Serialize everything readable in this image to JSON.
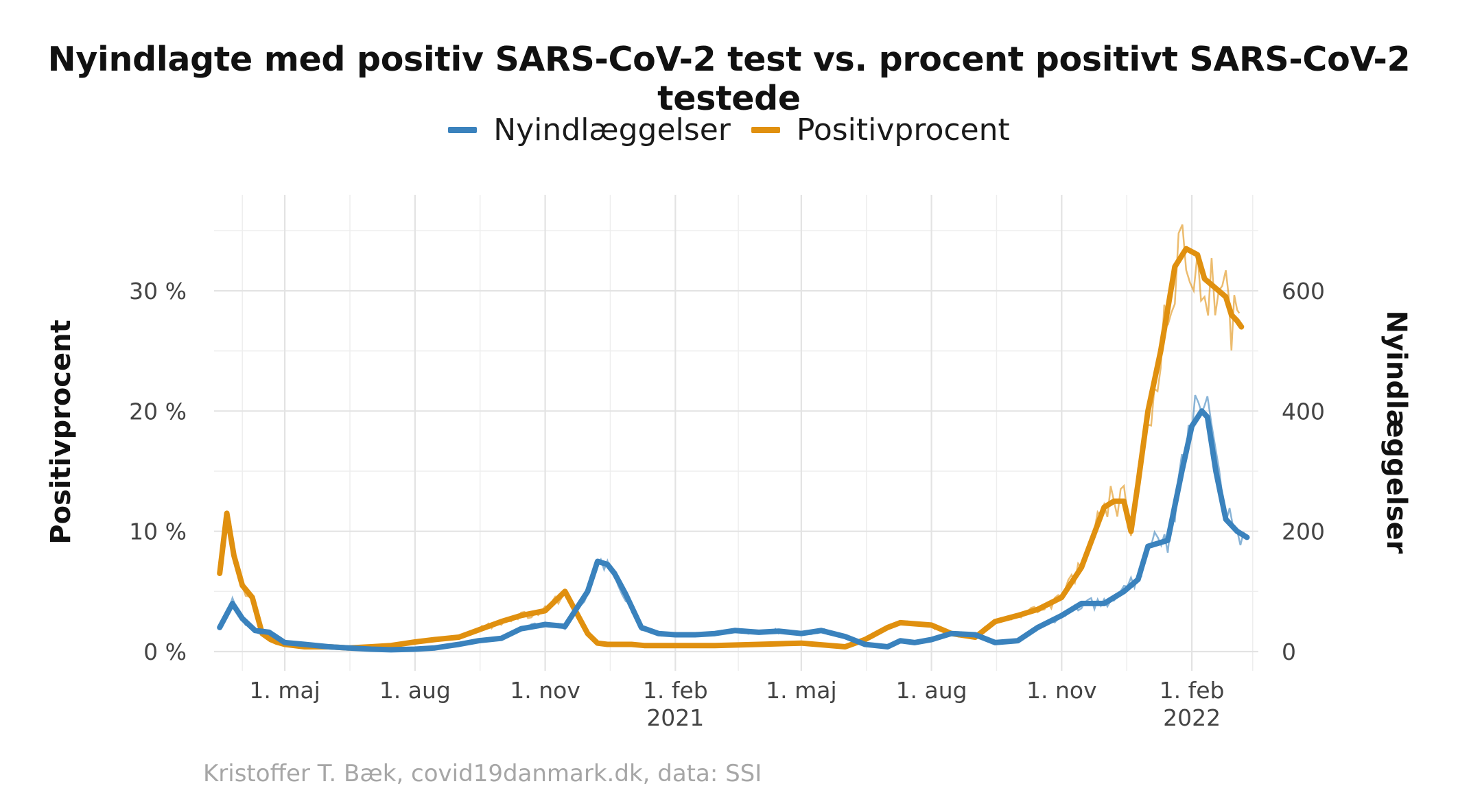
{
  "title": "Nyindlagte med positiv SARS-CoV-2 test vs. procent positivt SARS-CoV-2 testede",
  "caption": "Kristoffer T. Bæk, covid19danmark.dk, data: SSI",
  "colors": {
    "Nyindlæggelser": "#3a82bd",
    "Positivprocent": "#e0900f",
    "grid": "#e6e6e6"
  },
  "legend": [
    {
      "name": "Nyindlæggelser",
      "color": "#3a82bd"
    },
    {
      "name": "Positivprocent",
      "color": "#e0900f"
    }
  ],
  "chart_data": {
    "type": "line",
    "title": "Nyindlagte med positiv SARS-CoV-2 test vs. procent positivt SARS-CoV-2 testede",
    "xlabel": "",
    "ylabel": "Positivprocent",
    "y2label": "Nyindlæggelser",
    "xlim": [
      "2020-03-12",
      "2022-03-20"
    ],
    "ylim": [
      0,
      40
    ],
    "y2lim": [
      0,
      800
    ],
    "grid": true,
    "legend_position": "top",
    "x_ticks": [
      {
        "date": "2020-05-01",
        "label": "1. maj"
      },
      {
        "date": "2020-08-01",
        "label": "1. aug"
      },
      {
        "date": "2020-11-01",
        "label": "1. nov"
      },
      {
        "date": "2021-02-01",
        "label": "1. feb\n2021"
      },
      {
        "date": "2021-05-01",
        "label": "1. maj"
      },
      {
        "date": "2021-08-01",
        "label": "1. aug"
      },
      {
        "date": "2021-11-01",
        "label": "1. nov"
      },
      {
        "date": "2022-02-01",
        "label": "1. feb\n2022"
      }
    ],
    "y_ticks": [
      {
        "value": 0,
        "label": "0 %"
      },
      {
        "value": 10,
        "label": "10 %"
      },
      {
        "value": 20,
        "label": "20 %"
      },
      {
        "value": 30,
        "label": "30 %"
      }
    ],
    "y2_ticks": [
      {
        "value": 0,
        "label": "0"
      },
      {
        "value": 200,
        "label": "200"
      },
      {
        "value": 400,
        "label": "400"
      },
      {
        "value": 600,
        "label": "600"
      }
    ],
    "series": [
      {
        "name": "Positivprocent",
        "axis": "left",
        "unit": "%",
        "x": [
          "2020-03-16",
          "2020-03-21",
          "2020-03-26",
          "2020-04-01",
          "2020-04-08",
          "2020-04-15",
          "2020-04-21",
          "2020-04-25",
          "2020-05-01",
          "2020-05-15",
          "2020-06-01",
          "2020-06-15",
          "2020-07-01",
          "2020-07-15",
          "2020-08-01",
          "2020-08-15",
          "2020-09-01",
          "2020-09-15",
          "2020-10-01",
          "2020-10-15",
          "2020-11-01",
          "2020-11-15",
          "2020-12-01",
          "2020-12-08",
          "2020-12-15",
          "2020-12-20",
          "2021-01-01",
          "2021-01-10",
          "2021-02-01",
          "2021-03-01",
          "2021-04-01",
          "2021-05-01",
          "2021-06-01",
          "2021-06-15",
          "2021-07-01",
          "2021-07-10",
          "2021-08-01",
          "2021-08-15",
          "2021-09-01",
          "2021-09-15",
          "2021-10-01",
          "2021-10-15",
          "2021-11-01",
          "2021-11-15",
          "2021-12-01",
          "2021-12-08",
          "2021-12-15",
          "2021-12-20",
          "2021-12-25",
          "2022-01-01",
          "2022-01-10",
          "2022-01-20",
          "2022-01-28",
          "2022-02-05",
          "2022-02-10",
          "2022-02-15",
          "2022-02-20",
          "2022-02-25",
          "2022-03-01",
          "2022-03-05",
          "2022-03-08"
        ],
        "values": [
          6.5,
          11.5,
          8.0,
          5.5,
          4.5,
          1.5,
          1.0,
          0.8,
          0.6,
          0.4,
          0.4,
          0.3,
          0.4,
          0.5,
          0.8,
          1.0,
          1.2,
          1.8,
          2.5,
          3.0,
          3.4,
          5.0,
          1.5,
          0.7,
          0.6,
          0.6,
          0.6,
          0.5,
          0.5,
          0.5,
          0.6,
          0.7,
          0.4,
          1.0,
          2.0,
          2.4,
          2.2,
          1.5,
          1.2,
          2.5,
          3.0,
          3.5,
          4.5,
          7.0,
          12.0,
          12.5,
          12.5,
          10.0,
          14.0,
          20.0,
          25.0,
          32.0,
          33.5,
          33.0,
          31.0,
          30.5,
          30.0,
          29.5,
          28.0,
          27.5,
          27.0
        ]
      },
      {
        "name": "Nyindlæggelser",
        "axis": "right",
        "unit": "",
        "x": [
          "2020-03-16",
          "2020-03-25",
          "2020-04-01",
          "2020-04-10",
          "2020-04-20",
          "2020-05-01",
          "2020-05-15",
          "2020-06-01",
          "2020-06-15",
          "2020-07-01",
          "2020-07-15",
          "2020-08-01",
          "2020-08-15",
          "2020-09-01",
          "2020-09-15",
          "2020-10-01",
          "2020-10-15",
          "2020-11-01",
          "2020-11-15",
          "2020-12-01",
          "2020-12-08",
          "2020-12-15",
          "2020-12-20",
          "2020-12-28",
          "2021-01-08",
          "2021-01-20",
          "2021-02-01",
          "2021-02-15",
          "2021-03-01",
          "2021-03-15",
          "2021-04-01",
          "2021-04-15",
          "2021-05-01",
          "2021-05-15",
          "2021-06-01",
          "2021-06-15",
          "2021-07-01",
          "2021-07-10",
          "2021-07-20",
          "2021-08-01",
          "2021-08-15",
          "2021-09-01",
          "2021-09-15",
          "2021-10-01",
          "2021-10-15",
          "2021-11-01",
          "2021-11-15",
          "2021-12-01",
          "2021-12-15",
          "2021-12-25",
          "2022-01-01",
          "2022-01-15",
          "2022-01-25",
          "2022-02-01",
          "2022-02-08",
          "2022-02-12",
          "2022-02-18",
          "2022-02-25",
          "2022-03-05",
          "2022-03-12"
        ],
        "values": [
          40,
          80,
          55,
          35,
          32,
          15,
          12,
          8,
          6,
          4,
          3,
          4,
          6,
          12,
          18,
          22,
          38,
          45,
          42,
          100,
          150,
          145,
          130,
          95,
          40,
          30,
          28,
          28,
          30,
          35,
          32,
          34,
          30,
          35,
          25,
          12,
          8,
          18,
          15,
          20,
          30,
          28,
          15,
          18,
          40,
          60,
          80,
          80,
          100,
          120,
          175,
          185,
          300,
          375,
          400,
          390,
          300,
          220,
          200,
          190
        ]
      }
    ]
  }
}
